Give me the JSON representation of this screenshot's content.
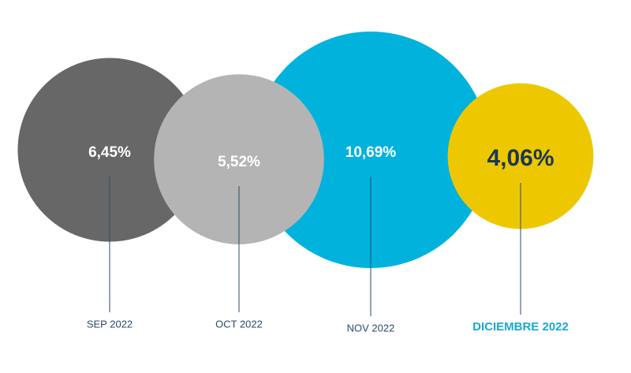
{
  "chart_data": {
    "type": "bubble",
    "categories": [
      "SEP 2022",
      "OCT 2022",
      "NOV 2022",
      "DICIEMBRE 2022"
    ],
    "values": [
      6.45,
      5.52,
      10.69,
      4.06
    ],
    "value_labels": [
      "6,45%",
      "5,52%",
      "10,69%",
      "4,06%"
    ],
    "colors": [
      "#676767",
      "#b4b4b4",
      "#00b2dc",
      "#edc800"
    ]
  }
}
